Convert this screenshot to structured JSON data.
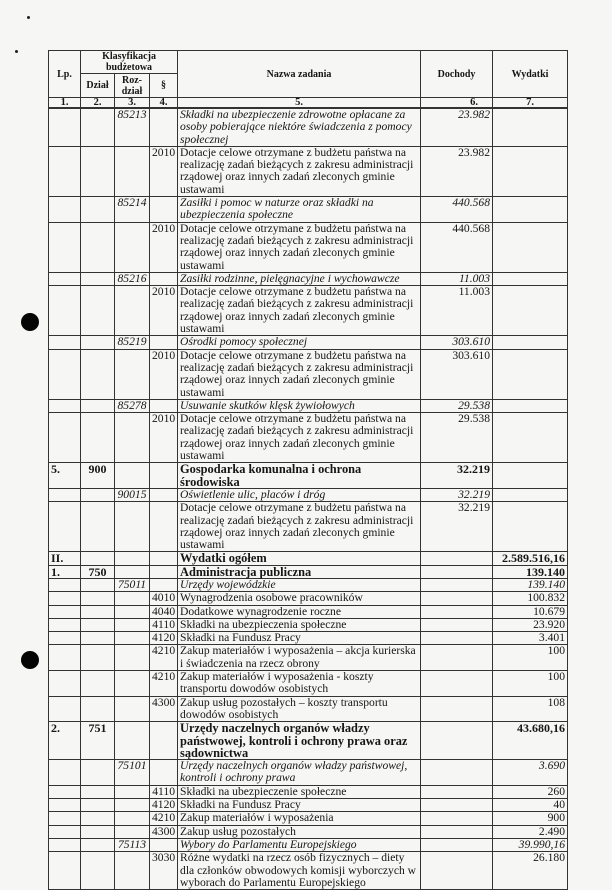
{
  "header": {
    "lp": "Lp.",
    "klasyfikacja": "Klasyfikacja budżetowa",
    "dzial": "Dział",
    "rozdzial": "Roz-dział",
    "paragraf": "§",
    "nazwa": "Nazwa zadania",
    "dochody": "Dochody",
    "wydatki": "Wydatki"
  },
  "column_numbers": [
    "1.",
    "2.",
    "3.",
    "4.",
    "5.",
    "6.",
    "7."
  ],
  "rows": [
    {
      "lp": "",
      "dzial": "",
      "rozdzial": "85213",
      "par": "",
      "name": "Składki na ubezpieczenie zdrowotne opłacane za osoby pobierające niektóre świadczenia z pomocy społecznej",
      "dochody": "23.982",
      "wydatki": "",
      "style": "italic"
    },
    {
      "lp": "",
      "dzial": "",
      "rozdzial": "",
      "par": "2010",
      "name": "Dotacje celowe otrzymane z budżetu państwa na realizację zadań bieżących z zakresu administracji rządowej oraz innych zadań zleconych gminie ustawami",
      "dochody": "23.982",
      "wydatki": "",
      "style": "normal"
    },
    {
      "lp": "",
      "dzial": "",
      "rozdzial": "85214",
      "par": "",
      "name": "Zasiłki i pomoc w naturze oraz składki na ubezpieczenia społeczne",
      "dochody": "440.568",
      "wydatki": "",
      "style": "italic"
    },
    {
      "lp": "",
      "dzial": "",
      "rozdzial": "",
      "par": "2010",
      "name": "Dotacje celowe otrzymane z budżetu państwa na realizację zadań bieżących z zakresu administracji rządowej oraz innych zadań zleconych gminie ustawami",
      "dochody": "440.568",
      "wydatki": "",
      "style": "normal"
    },
    {
      "lp": "",
      "dzial": "",
      "rozdzial": "85216",
      "par": "",
      "name": "Zasiłki rodzinne, pielęgnacyjne i wychowawcze",
      "dochody": "11.003",
      "wydatki": "",
      "style": "italic"
    },
    {
      "lp": "",
      "dzial": "",
      "rozdzial": "",
      "par": "2010",
      "name": "Dotacje celowe otrzymane z budżetu państwa na realizację zadań bieżących z zakresu administracji rządowej oraz innych zadań zleconych gminie ustawami",
      "dochody": "11.003",
      "wydatki": "",
      "style": "normal"
    },
    {
      "lp": "",
      "dzial": "",
      "rozdzial": "85219",
      "par": "",
      "name": "Ośrodki pomocy społecznej",
      "dochody": "303.610",
      "wydatki": "",
      "style": "italic"
    },
    {
      "lp": "",
      "dzial": "",
      "rozdzial": "",
      "par": "2010",
      "name": "Dotacje celowe otrzymane z budżetu państwa na realizację zadań bieżących z zakresu administracji rządowej oraz innych zadań zleconych gminie ustawami",
      "dochody": "303.610",
      "wydatki": "",
      "style": "normal"
    },
    {
      "lp": "",
      "dzial": "",
      "rozdzial": "85278",
      "par": "",
      "name": "Usuwanie skutków klęsk żywiołowych",
      "dochody": "29.538",
      "wydatki": "",
      "style": "italic"
    },
    {
      "lp": "",
      "dzial": "",
      "rozdzial": "",
      "par": "2010",
      "name": "Dotacje celowe otrzymane z budżetu państwa na realizację zadań bieżących z zakresu administracji rządowej oraz innych zadań zleconych gminie ustawami",
      "dochody": "29.538",
      "wydatki": "",
      "style": "normal"
    },
    {
      "lp": "5.",
      "dzial": "900",
      "rozdzial": "",
      "par": "",
      "name": "Gospodarka komunalna i ochrona środowiska",
      "dochody": "32.219",
      "wydatki": "",
      "style": "bold"
    },
    {
      "lp": "",
      "dzial": "",
      "rozdzial": "90015",
      "par": "",
      "name": "Oświetlenie ulic, placów i dróg",
      "dochody": "32.219",
      "wydatki": "",
      "style": "italic"
    },
    {
      "lp": "",
      "dzial": "",
      "rozdzial": "",
      "par": "",
      "name": "Dotacje celowe otrzymane z budżetu państwa na realizację zadań bieżących z zakresu administracji rządowej oraz innych zadań zleconych gminie ustawami",
      "dochody": "32.219",
      "wydatki": "",
      "style": "normal"
    },
    {
      "lp": "II.",
      "dzial": "",
      "rozdzial": "",
      "par": "",
      "name": "Wydatki ogółem",
      "dochody": "",
      "wydatki": "2.589.516,16",
      "style": "bold"
    },
    {
      "lp": "1.",
      "dzial": "750",
      "rozdzial": "",
      "par": "",
      "name": "Administracja publiczna",
      "dochody": "",
      "wydatki": "139.140",
      "style": "bold"
    },
    {
      "lp": "",
      "dzial": "",
      "rozdzial": "75011",
      "par": "",
      "name": "Urzędy wojewódzkie",
      "dochody": "",
      "wydatki": "139.140",
      "style": "italic"
    },
    {
      "lp": "",
      "dzial": "",
      "rozdzial": "",
      "par": "4010",
      "name": "Wynagrodzenia osobowe pracowników",
      "dochody": "",
      "wydatki": "100.832",
      "style": "normal"
    },
    {
      "lp": "",
      "dzial": "",
      "rozdzial": "",
      "par": "4040",
      "name": "Dodatkowe wynagrodzenie roczne",
      "dochody": "",
      "wydatki": "10.679",
      "style": "normal"
    },
    {
      "lp": "",
      "dzial": "",
      "rozdzial": "",
      "par": "4110",
      "name": "Składki na ubezpieczenia społeczne",
      "dochody": "",
      "wydatki": "23.920",
      "style": "normal"
    },
    {
      "lp": "",
      "dzial": "",
      "rozdzial": "",
      "par": "4120",
      "name": "Składki na Fundusz Pracy",
      "dochody": "",
      "wydatki": "3.401",
      "style": "normal"
    },
    {
      "lp": "",
      "dzial": "",
      "rozdzial": "",
      "par": "4210",
      "name": "Zakup materiałów i wyposażenia – akcja kurierska i świadczenia na rzecz obrony",
      "dochody": "",
      "wydatki": "100",
      "style": "normal"
    },
    {
      "lp": "",
      "dzial": "",
      "rozdzial": "",
      "par": "4210",
      "name": "Zakup materiałów i wyposażenia - koszty transportu dowodów osobistych",
      "dochody": "",
      "wydatki": "100",
      "style": "normal"
    },
    {
      "lp": "",
      "dzial": "",
      "rozdzial": "",
      "par": "4300",
      "name": "Zakup usług pozostałych – koszty transportu dowodów osobistych",
      "dochody": "",
      "wydatki": "108",
      "style": "normal"
    },
    {
      "lp": "2.",
      "dzial": "751",
      "rozdzial": "",
      "par": "",
      "name": "Urzędy naczelnych organów władzy państwowej, kontroli i ochrony prawa oraz sądownictwa",
      "dochody": "",
      "wydatki": "43.680,16",
      "style": "bold"
    },
    {
      "lp": "",
      "dzial": "",
      "rozdzial": "75101",
      "par": "",
      "name": "Urzędy naczelnych organów władzy państwowej, kontroli i ochrony prawa",
      "dochody": "",
      "wydatki": "3.690",
      "style": "italic"
    },
    {
      "lp": "",
      "dzial": "",
      "rozdzial": "",
      "par": "4110",
      "name": "Składki na ubezpieczenie społeczne",
      "dochody": "",
      "wydatki": "260",
      "style": "normal"
    },
    {
      "lp": "",
      "dzial": "",
      "rozdzial": "",
      "par": "4120",
      "name": "Składki na Fundusz Pracy",
      "dochody": "",
      "wydatki": "40",
      "style": "normal"
    },
    {
      "lp": "",
      "dzial": "",
      "rozdzial": "",
      "par": "4210",
      "name": "Zakup materiałów i wyposażenia",
      "dochody": "",
      "wydatki": "900",
      "style": "normal"
    },
    {
      "lp": "",
      "dzial": "",
      "rozdzial": "",
      "par": "4300",
      "name": "Zakup usług pozostałych",
      "dochody": "",
      "wydatki": "2.490",
      "style": "normal"
    },
    {
      "lp": "",
      "dzial": "",
      "rozdzial": "75113",
      "par": "",
      "name": "Wybory do Parlamentu Europejskiego",
      "dochody": "",
      "wydatki": "39.990,16",
      "style": "italic"
    },
    {
      "lp": "",
      "dzial": "",
      "rozdzial": "",
      "par": "3030",
      "name": "Różne wydatki na rzecz osób fizycznych – diety dla członków obwodowych komisji wyborczych w wyborach do Parlamentu Europejskiego",
      "dochody": "",
      "wydatki": "26.180",
      "style": "normal"
    }
  ]
}
